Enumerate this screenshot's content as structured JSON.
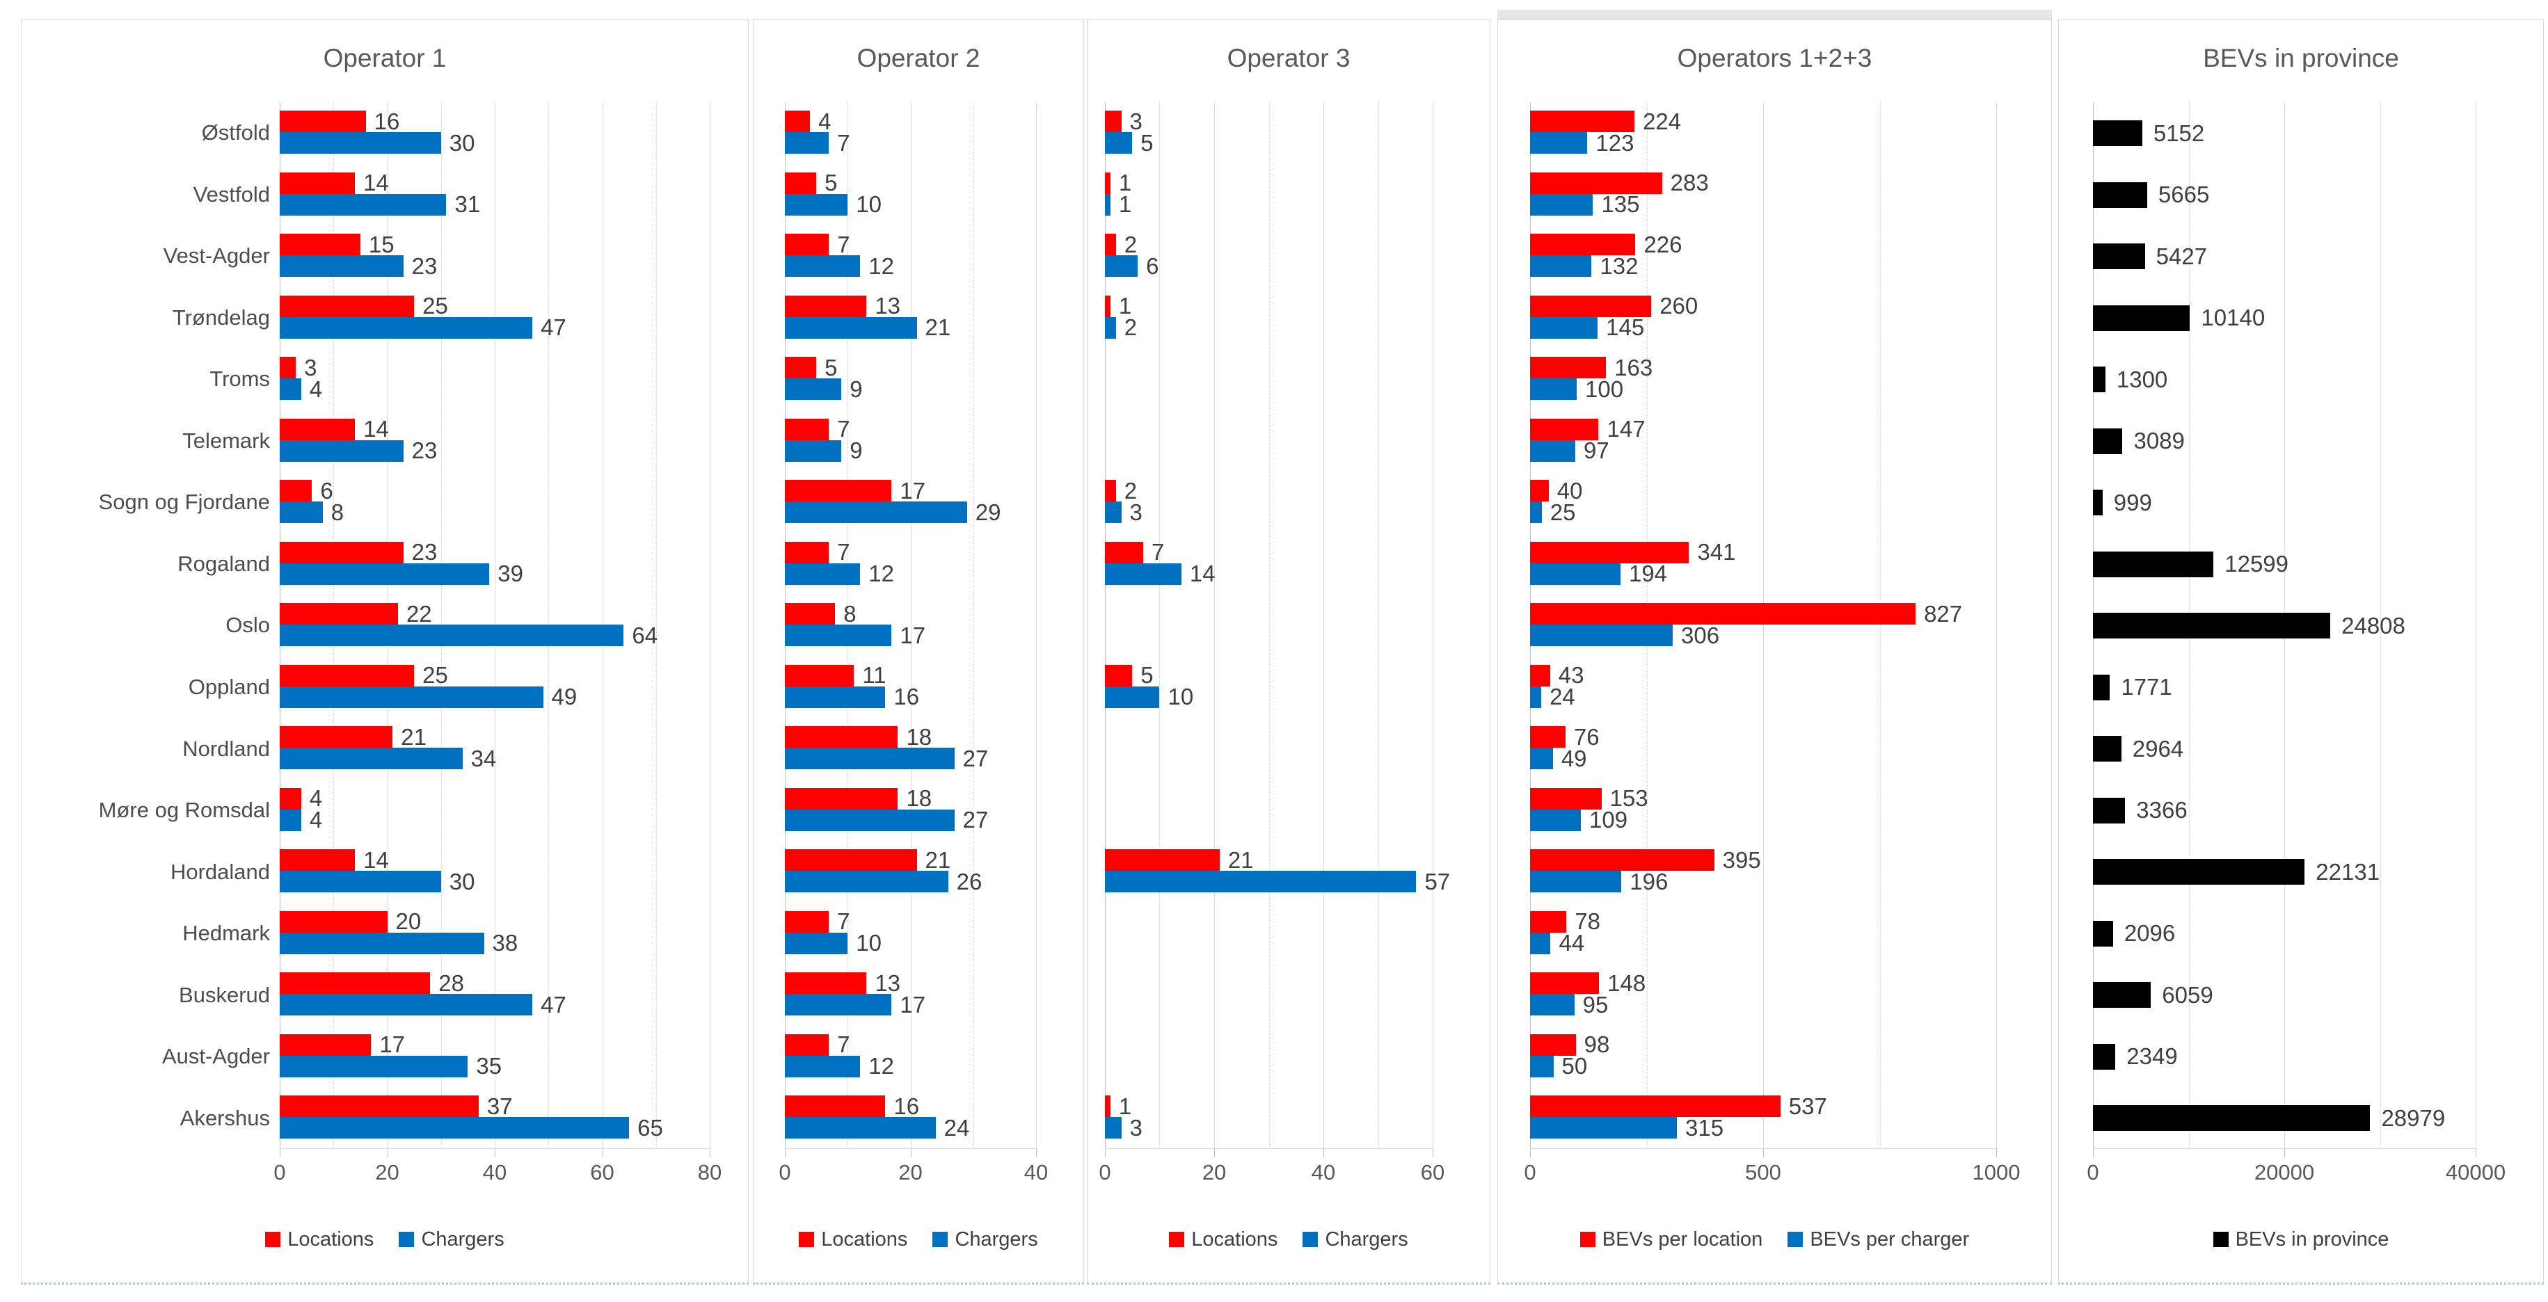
{
  "chart_data": [
    {
      "type": "bar",
      "orientation": "horizontal",
      "title": "Operator 1",
      "categories": [
        "Østfold",
        "Vestfold",
        "Vest-Agder",
        "Trøndelag",
        "Troms",
        "Telemark",
        "Sogn og Fjordane",
        "Rogaland",
        "Oslo",
        "Oppland",
        "Nordland",
        "Møre og Romsdal",
        "Hordaland",
        "Hedmark",
        "Buskerud",
        "Aust-Agder",
        "Akershus"
      ],
      "series": [
        {
          "name": "Locations",
          "color": "#FF0000",
          "values": [
            16,
            14,
            15,
            25,
            3,
            14,
            6,
            23,
            22,
            25,
            21,
            4,
            14,
            20,
            28,
            17,
            37
          ]
        },
        {
          "name": "Chargers",
          "color": "#0070C0",
          "values": [
            30,
            31,
            23,
            47,
            4,
            23,
            8,
            39,
            64,
            49,
            34,
            4,
            30,
            38,
            47,
            35,
            65
          ]
        }
      ],
      "xlim": [
        0,
        80
      ],
      "xticks": [
        0,
        20,
        40,
        60,
        80
      ],
      "grid": true,
      "legend_position": "bottom",
      "show_category_axis_labels": true
    },
    {
      "type": "bar",
      "orientation": "horizontal",
      "title": "Operator 2",
      "categories": [
        "Østfold",
        "Vestfold",
        "Vest-Agder",
        "Trøndelag",
        "Troms",
        "Telemark",
        "Sogn og Fjordane",
        "Rogaland",
        "Oslo",
        "Oppland",
        "Nordland",
        "Møre og Romsdal",
        "Hordaland",
        "Hedmark",
        "Buskerud",
        "Aust-Agder",
        "Akershus"
      ],
      "series": [
        {
          "name": "Locations",
          "color": "#FF0000",
          "values": [
            4,
            5,
            7,
            13,
            5,
            7,
            17,
            7,
            8,
            11,
            18,
            18,
            21,
            7,
            13,
            7,
            16
          ]
        },
        {
          "name": "Chargers",
          "color": "#0070C0",
          "values": [
            7,
            10,
            12,
            21,
            9,
            9,
            29,
            12,
            17,
            16,
            27,
            27,
            26,
            10,
            17,
            12,
            24
          ]
        }
      ],
      "xlim": [
        0,
        40
      ],
      "xticks": [
        0,
        20,
        40
      ],
      "grid": true,
      "legend_position": "bottom",
      "show_category_axis_labels": false
    },
    {
      "type": "bar",
      "orientation": "horizontal",
      "title": "Operator 3",
      "categories": [
        "Østfold",
        "Vestfold",
        "Vest-Agder",
        "Trøndelag",
        "Troms",
        "Telemark",
        "Sogn og Fjordane",
        "Rogaland",
        "Oslo",
        "Oppland",
        "Nordland",
        "Møre og Romsdal",
        "Hordaland",
        "Hedmark",
        "Buskerud",
        "Aust-Agder",
        "Akershus"
      ],
      "series": [
        {
          "name": "Locations",
          "color": "#FF0000",
          "values": [
            3,
            1,
            2,
            1,
            null,
            null,
            2,
            7,
            null,
            5,
            null,
            null,
            21,
            null,
            null,
            null,
            1
          ]
        },
        {
          "name": "Chargers",
          "color": "#0070C0",
          "values": [
            5,
            1,
            6,
            2,
            null,
            null,
            3,
            14,
            null,
            10,
            null,
            null,
            57,
            null,
            null,
            null,
            3
          ]
        }
      ],
      "xlim": [
        0,
        60
      ],
      "xticks": [
        0,
        20,
        40,
        60
      ],
      "grid": true,
      "legend_position": "bottom",
      "show_category_axis_labels": false
    },
    {
      "type": "bar",
      "orientation": "horizontal",
      "title": "Operators 1+2+3",
      "categories": [
        "Østfold",
        "Vestfold",
        "Vest-Agder",
        "Trøndelag",
        "Troms",
        "Telemark",
        "Sogn og Fjordane",
        "Rogaland",
        "Oslo",
        "Oppland",
        "Nordland",
        "Møre og Romsdal",
        "Hordaland",
        "Hedmark",
        "Buskerud",
        "Aust-Agder",
        "Akershus"
      ],
      "series": [
        {
          "name": "BEVs per location",
          "color": "#FF0000",
          "values": [
            224,
            283,
            226,
            260,
            163,
            147,
            40,
            341,
            827,
            43,
            76,
            153,
            395,
            78,
            148,
            98,
            537
          ]
        },
        {
          "name": "BEVs per charger",
          "color": "#0070C0",
          "values": [
            123,
            135,
            132,
            145,
            100,
            97,
            25,
            194,
            306,
            24,
            49,
            109,
            196,
            44,
            95,
            50,
            315
          ]
        }
      ],
      "xlim": [
        0,
        1000
      ],
      "xticks": [
        0,
        500,
        1000
      ],
      "grid": true,
      "legend_position": "bottom",
      "show_category_axis_labels": false
    },
    {
      "type": "bar",
      "orientation": "horizontal",
      "title": "BEVs in province",
      "categories": [
        "Østfold",
        "Vestfold",
        "Vest-Agder",
        "Trøndelag",
        "Troms",
        "Telemark",
        "Sogn og Fjordane",
        "Rogaland",
        "Oslo",
        "Oppland",
        "Nordland",
        "Møre og Romsdal",
        "Hordaland",
        "Hedmark",
        "Buskerud",
        "Aust-Agder",
        "Akershus"
      ],
      "series": [
        {
          "name": "BEVs in province",
          "color": "#000000",
          "values": [
            5152,
            5665,
            5427,
            10140,
            1300,
            3089,
            999,
            12599,
            24808,
            1771,
            2964,
            3366,
            22131,
            2096,
            6059,
            2349,
            28979
          ]
        }
      ],
      "xlim": [
        0,
        40000
      ],
      "xticks": [
        0,
        20000,
        40000
      ],
      "grid": true,
      "legend_position": "bottom",
      "show_category_axis_labels": false
    }
  ],
  "style": {
    "red": "#FF0000",
    "blue": "#0070C0",
    "black": "#000000",
    "gridline_color": "#D9D9D9",
    "text_color": "#404040",
    "axis_text_color": "#595959",
    "background": "#FFFFFF"
  }
}
